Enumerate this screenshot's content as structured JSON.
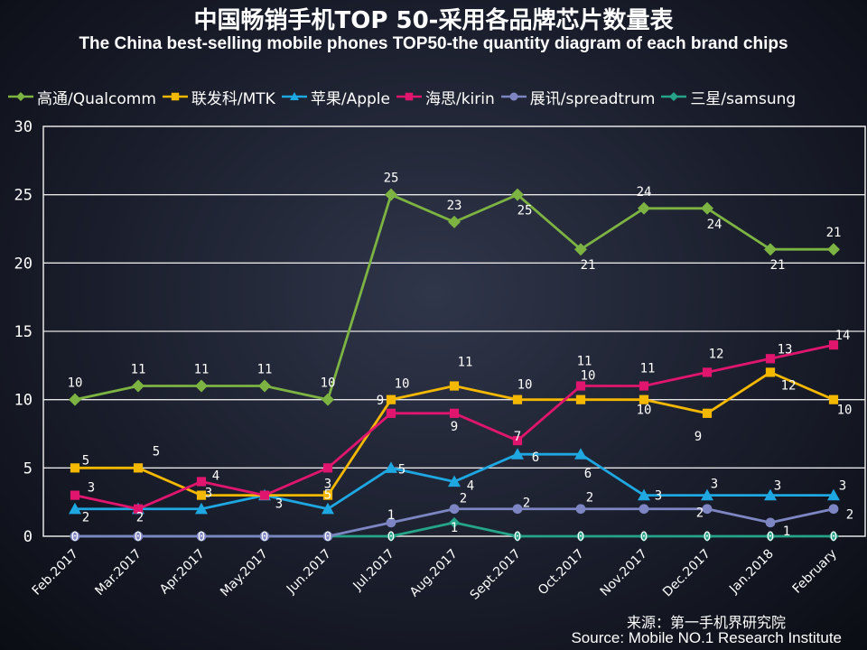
{
  "chart_data": {
    "type": "line",
    "title": "中国畅销手机TOP 50-采用各品牌芯片数量表",
    "subtitle": "The China best-selling mobile phones TOP50-the quantity diagram of each brand chips",
    "xlabel": "",
    "ylabel": "",
    "ylim": [
      0,
      30
    ],
    "yticks": [
      "0",
      "5",
      "10",
      "15",
      "20",
      "25",
      "30"
    ],
    "grid": "horizontal",
    "legend_position": "top",
    "categories": [
      "Feb.2017",
      "Mar.2017",
      "Apr.2017",
      "May.2017",
      "Jun.2017",
      "Jul.2017",
      "Aug.2017",
      "Sept.2017",
      "Oct.2017",
      "Nov.2017",
      "Dec.2017",
      "Jan.2018",
      "February"
    ],
    "series": [
      {
        "name": "高通/Qualcomm",
        "color": "#7cb342",
        "marker": "diamond",
        "values": [
          10,
          11,
          11,
          11,
          10,
          25,
          23,
          25,
          21,
          24,
          24,
          21,
          21
        ]
      },
      {
        "name": "联发科/MTK",
        "color": "#f5b800",
        "marker": "square",
        "values": [
          5,
          5,
          3,
          3,
          3,
          10,
          11,
          10,
          10,
          10,
          9,
          12,
          10
        ]
      },
      {
        "name": "苹果/Apple",
        "color": "#1ea7e1",
        "marker": "triangle",
        "values": [
          2,
          2,
          2,
          3,
          2,
          5,
          4,
          6,
          6,
          3,
          3,
          3,
          3
        ]
      },
      {
        "name": "海思/kirin",
        "color": "#e0166e",
        "marker": "square",
        "values": [
          3,
          2,
          4,
          3,
          5,
          9,
          9,
          7,
          11,
          11,
          12,
          13,
          14
        ]
      },
      {
        "name": "展讯/spreadtrum",
        "color": "#7d86c2",
        "marker": "circle",
        "values": [
          0,
          0,
          0,
          0,
          0,
          1,
          2,
          2,
          2,
          2,
          2,
          1,
          2
        ]
      },
      {
        "name": "三星/samsung",
        "color": "#26a48a",
        "marker": "diamond",
        "values": [
          0,
          0,
          0,
          0,
          0,
          0,
          1,
          0,
          0,
          0,
          0,
          0,
          0
        ]
      }
    ]
  },
  "source": {
    "cn": "来源：第一手机界研究院",
    "en": "Source: Mobile NO.1 Research Institute"
  }
}
